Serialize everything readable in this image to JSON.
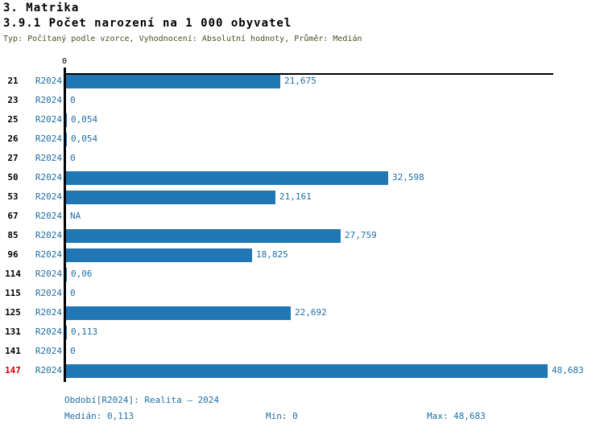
{
  "header": {
    "title": "3. Matrika",
    "subtitle": "3.9.1 Počet narození na 1 000 obyvatel",
    "meta": "Typ: Počítaný podle vzorce, Vyhodnocení: Absolutní hodnoty, Průměr: Medián"
  },
  "colors": {
    "bar": "#2077b4",
    "blue_text": "#1d6ea6",
    "highlight_red": "#d40000",
    "meta_olive": "#4d4d1f",
    "axis_black": "#000000"
  },
  "chart_data": {
    "type": "bar",
    "orientation": "horizontal",
    "title": "3.9.1 Počet narození na 1 000 obyvatel",
    "axis_zero_label": "0",
    "axis_max": 48.683,
    "series_name": "R2024",
    "categories": [
      "21",
      "23",
      "25",
      "26",
      "27",
      "50",
      "53",
      "67",
      "85",
      "96",
      "114",
      "115",
      "125",
      "131",
      "141",
      "147"
    ],
    "rows": [
      {
        "id": "21",
        "period": "R2024",
        "value": 21.675,
        "display": "21,675",
        "highlight": false
      },
      {
        "id": "23",
        "period": "R2024",
        "value": 0,
        "display": "0",
        "highlight": false
      },
      {
        "id": "25",
        "period": "R2024",
        "value": 0.054,
        "display": "0,054",
        "highlight": false
      },
      {
        "id": "26",
        "period": "R2024",
        "value": 0.054,
        "display": "0,054",
        "highlight": false
      },
      {
        "id": "27",
        "period": "R2024",
        "value": 0,
        "display": "0",
        "highlight": false
      },
      {
        "id": "50",
        "period": "R2024",
        "value": 32.598,
        "display": "32,598",
        "highlight": false
      },
      {
        "id": "53",
        "period": "R2024",
        "value": 21.161,
        "display": "21,161",
        "highlight": false
      },
      {
        "id": "67",
        "period": "R2024",
        "value": null,
        "display": "NA",
        "highlight": false
      },
      {
        "id": "85",
        "period": "R2024",
        "value": 27.759,
        "display": "27,759",
        "highlight": false
      },
      {
        "id": "96",
        "period": "R2024",
        "value": 18.825,
        "display": "18,825",
        "highlight": false
      },
      {
        "id": "114",
        "period": "R2024",
        "value": 0.06,
        "display": "0,06",
        "highlight": false
      },
      {
        "id": "115",
        "period": "R2024",
        "value": 0,
        "display": "0",
        "highlight": false
      },
      {
        "id": "125",
        "period": "R2024",
        "value": 22.692,
        "display": "22,692",
        "highlight": false
      },
      {
        "id": "131",
        "period": "R2024",
        "value": 0.113,
        "display": "0,113",
        "highlight": false
      },
      {
        "id": "141",
        "period": "R2024",
        "value": 0,
        "display": "0",
        "highlight": false
      },
      {
        "id": "147",
        "period": "R2024",
        "value": 48.683,
        "display": "48,683",
        "highlight": true
      }
    ],
    "stats": {
      "median": 0.113,
      "min": 0,
      "max": 48.683
    }
  },
  "footer": {
    "period": "Období[R2024]: Realita – 2024",
    "median": "Medián: 0,113",
    "min": "Min: 0",
    "max": "Max: 48,683"
  }
}
